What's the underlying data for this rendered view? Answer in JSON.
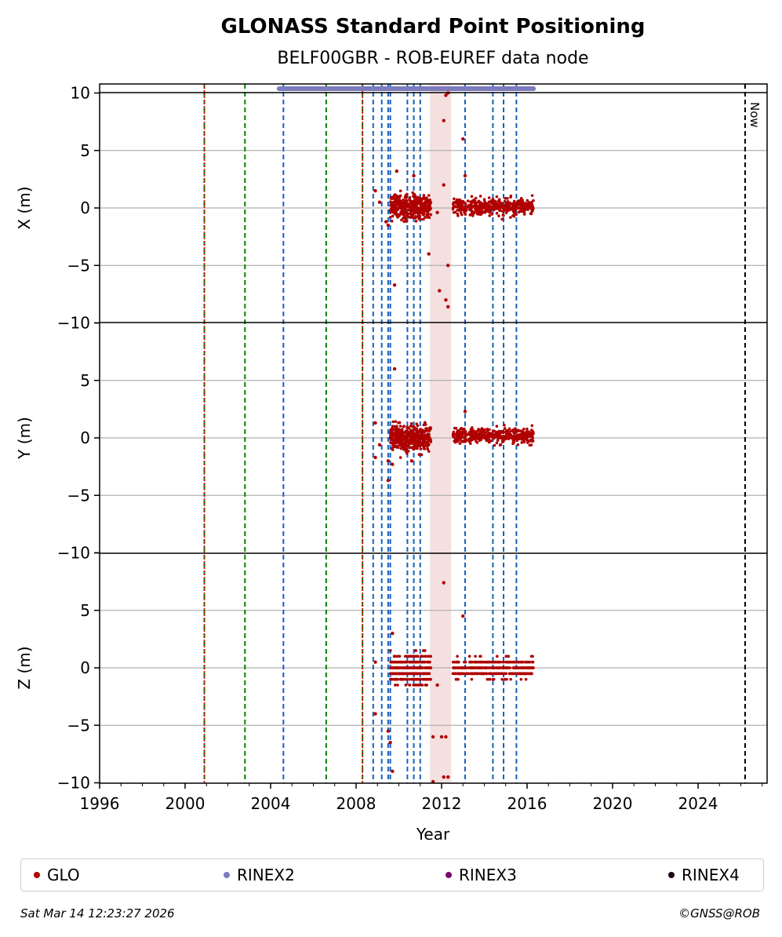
{
  "chart_data": {
    "type": "scatter",
    "title": "GLONASS Standard Point Positioning",
    "subtitle": "BELF00GBR - ROB-EUREF data node",
    "xlabel": "Year",
    "xlim": [
      1996,
      2027.2
    ],
    "x_ticks": [
      "1996",
      "2000",
      "2004",
      "2008",
      "2012",
      "2016",
      "2020",
      "2024"
    ],
    "now_label": "Now",
    "now_year": 2026.2,
    "grid": true,
    "legend_placement": "bottom",
    "panels": [
      {
        "ylabel": "X (m)",
        "ylim": [
          -10,
          10
        ],
        "y_ticks": [
          "10",
          "5",
          "0",
          "−5",
          "−10"
        ]
      },
      {
        "ylabel": "Y (m)",
        "ylim": [
          -10,
          10
        ],
        "y_ticks": [
          "",
          "5",
          "0",
          "−5",
          "−10"
        ]
      },
      {
        "ylabel": "Z (m)",
        "ylim": [
          -10,
          10
        ],
        "y_ticks": [
          "",
          "5",
          "0",
          "−5",
          "−10"
        ]
      }
    ],
    "event_lines": {
      "receiver_change_red": [
        2000.9,
        2008.3
      ],
      "antenna_change_green": [
        2000.9,
        2002.8,
        2006.6,
        2008.3
      ],
      "equipment_change_blue": [
        2004.6,
        2008.8,
        2009.2,
        2009.5,
        2009.6,
        2010.4,
        2010.7,
        2011.0,
        2013.1,
        2014.4,
        2014.9,
        2015.5
      ]
    },
    "shaded_period": [
      2011.45,
      2012.45
    ],
    "rinex2_coverage": [
      2004.4,
      2016.3
    ],
    "clusters": [
      {
        "x": [
          2009.6,
          2011.5
        ],
        "x_spread": [
          -1.5,
          1.8
        ],
        "y_spread": [
          -2.0,
          2.0
        ],
        "z_spread": [
          -2.5,
          2.0
        ]
      },
      {
        "x": [
          2012.5,
          2016.3
        ],
        "x_spread": [
          -1.0,
          1.5
        ],
        "y_spread": [
          -0.7,
          1.5
        ],
        "z_spread": [
          -1.5,
          1.5
        ]
      }
    ],
    "outliers": {
      "X": [
        [
          2008.9,
          1.5
        ],
        [
          2009.1,
          0.5
        ],
        [
          2009.4,
          -1.2
        ],
        [
          2009.5,
          -1.5
        ],
        [
          2009.8,
          -6.7
        ],
        [
          2009.9,
          3.2
        ],
        [
          2010.7,
          2.8
        ],
        [
          2011.4,
          -4.0
        ],
        [
          2011.9,
          -7.2
        ],
        [
          2012.1,
          7.6
        ],
        [
          2012.2,
          -8.0
        ],
        [
          2012.3,
          -8.6
        ],
        [
          2012.3,
          -5.0
        ],
        [
          2012.2,
          9.8
        ],
        [
          2012.3,
          10.0
        ],
        [
          2013.0,
          6.0
        ],
        [
          2013.1,
          2.8
        ],
        [
          2011.8,
          -0.4
        ],
        [
          2012.1,
          2.0
        ]
      ],
      "Y": [
        [
          2008.9,
          1.3
        ],
        [
          2008.9,
          -1.7
        ],
        [
          2009.1,
          -0.6
        ],
        [
          2009.5,
          -2.0
        ],
        [
          2009.5,
          -3.7
        ],
        [
          2009.8,
          6.0
        ],
        [
          2009.7,
          -2.3
        ],
        [
          2013.1,
          2.3
        ],
        [
          2010.6,
          -2.0
        ]
      ],
      "Z": [
        [
          2008.9,
          0.5
        ],
        [
          2008.9,
          -4.0
        ],
        [
          2009.5,
          -5.5
        ],
        [
          2009.6,
          -6.5
        ],
        [
          2009.7,
          -9.0
        ],
        [
          2009.7,
          3.0
        ],
        [
          2011.6,
          -9.9
        ],
        [
          2011.6,
          -6.0
        ],
        [
          2012.0,
          -6.0
        ],
        [
          2012.2,
          -6.0
        ],
        [
          2012.1,
          7.4
        ],
        [
          2012.1,
          -9.5
        ],
        [
          2012.3,
          -9.5
        ],
        [
          2013.0,
          4.5
        ],
        [
          2011.8,
          -1.5
        ]
      ]
    }
  },
  "legend": [
    {
      "label": "GLO",
      "color": "#b00000"
    },
    {
      "label": "RINEX2",
      "color": "#7b7bbd"
    },
    {
      "label": "RINEX3",
      "color": "#7a0a6a"
    },
    {
      "label": "RINEX4",
      "color": "#200018"
    }
  ],
  "footer": {
    "timestamp": "Sat Mar 14 12:23:27 2026",
    "copyright": "©GNSS@ROB"
  }
}
